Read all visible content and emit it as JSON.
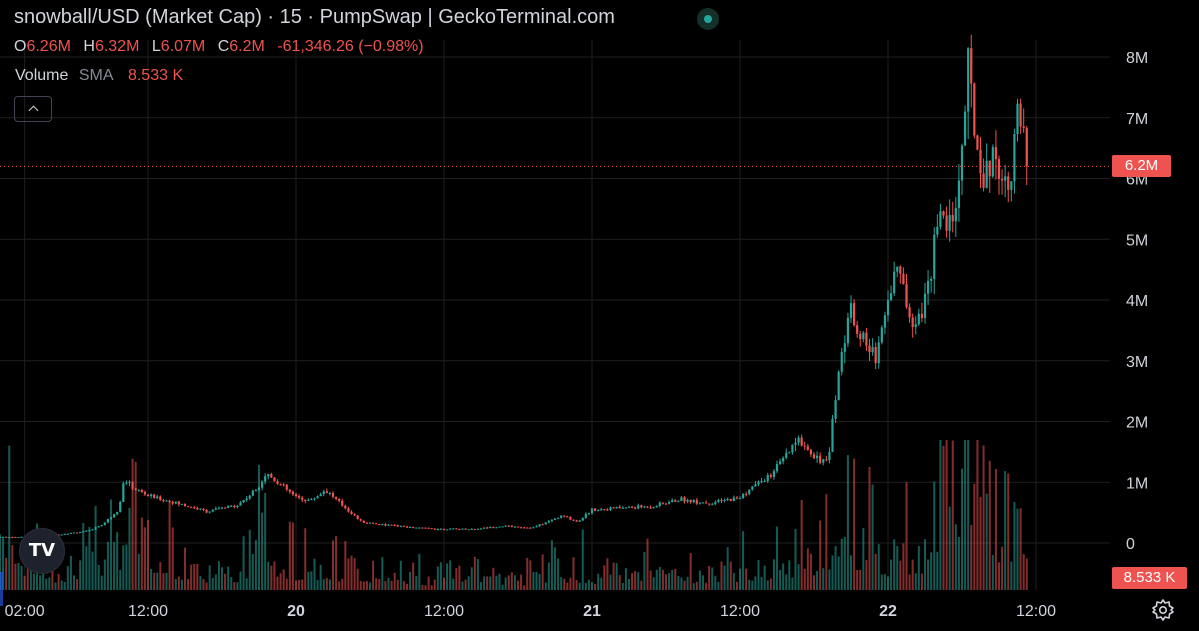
{
  "header": {
    "title": "snowball/USD (Market Cap) · 15 · PumpSwap | GeckoTerminal.com"
  },
  "ohlc": {
    "o_label": "O",
    "o": "6.26M",
    "h_label": "H",
    "h": "6.32M",
    "l_label": "L",
    "l": "6.07M",
    "c_label": "C",
    "c": "6.2M",
    "change": "-61,346.26 (−0.98%)"
  },
  "volume_legend": {
    "label": "Volume",
    "sma_label": "SMA",
    "value": "8.533 K"
  },
  "tags": {
    "last_price": "6.2M",
    "last_volume": "8.533 K"
  },
  "colors": {
    "up": "#26a69a",
    "down": "#ef5350",
    "grid": "#1f1f1f",
    "text": "#d1d4dc",
    "price_line": "#ef5350"
  },
  "icons": {
    "collapse": "chevron-up-icon",
    "logo": "tradingview-logo-icon",
    "settings": "gear-icon",
    "status": "live-status-dot-icon"
  },
  "chart_data": {
    "type": "candlestick",
    "interval": "15",
    "y_ticks": [
      "8M",
      "7M",
      "6M",
      "5M",
      "4M",
      "3M",
      "2M",
      "1M",
      "0"
    ],
    "y_tick_values": [
      8000000,
      7000000,
      6000000,
      5000000,
      4000000,
      3000000,
      2000000,
      1000000,
      0
    ],
    "ylim": [
      0,
      8000000
    ],
    "x_ticks": [
      "02:00",
      "12:00",
      "20",
      "12:00",
      "21",
      "12:00",
      "22",
      "12:00"
    ],
    "x_tick_days": [
      19.0833,
      19.5,
      20.0,
      20.5,
      21.0,
      21.5,
      22.0,
      22.5
    ],
    "xlim": [
      19.0,
      22.75
    ],
    "last_close": 6200000,
    "price_path": [
      [
        19.0,
        100000
      ],
      [
        19.1,
        100000
      ],
      [
        19.2,
        140000
      ],
      [
        19.3,
        200000
      ],
      [
        19.35,
        320000
      ],
      [
        19.4,
        550000
      ],
      [
        19.42,
        1050000
      ],
      [
        19.45,
        900000
      ],
      [
        19.5,
        780000
      ],
      [
        19.6,
        650000
      ],
      [
        19.7,
        520000
      ],
      [
        19.8,
        620000
      ],
      [
        19.86,
        850000
      ],
      [
        19.9,
        1150000
      ],
      [
        19.95,
        950000
      ],
      [
        20.0,
        750000
      ],
      [
        20.05,
        700000
      ],
      [
        20.1,
        880000
      ],
      [
        20.15,
        650000
      ],
      [
        20.22,
        350000
      ],
      [
        20.3,
        300000
      ],
      [
        20.4,
        250000
      ],
      [
        20.5,
        230000
      ],
      [
        20.6,
        230000
      ],
      [
        20.7,
        280000
      ],
      [
        20.8,
        250000
      ],
      [
        20.85,
        350000
      ],
      [
        20.9,
        450000
      ],
      [
        20.95,
        350000
      ],
      [
        21.0,
        550000
      ],
      [
        21.1,
        580000
      ],
      [
        21.2,
        600000
      ],
      [
        21.3,
        720000
      ],
      [
        21.4,
        650000
      ],
      [
        21.5,
        750000
      ],
      [
        21.55,
        950000
      ],
      [
        21.6,
        1100000
      ],
      [
        21.65,
        1400000
      ],
      [
        21.7,
        1700000
      ],
      [
        21.75,
        1450000
      ],
      [
        21.8,
        1300000
      ],
      [
        21.81,
        2000000
      ],
      [
        21.84,
        3000000
      ],
      [
        21.87,
        3900000
      ],
      [
        21.9,
        3500000
      ],
      [
        21.93,
        3200000
      ],
      [
        21.96,
        3100000
      ],
      [
        21.99,
        3800000
      ],
      [
        22.03,
        4600000
      ],
      [
        22.07,
        3800000
      ],
      [
        22.1,
        3700000
      ],
      [
        22.14,
        4200000
      ],
      [
        22.16,
        5400000
      ],
      [
        22.2,
        5200000
      ],
      [
        22.23,
        5600000
      ],
      [
        22.25,
        6500000
      ],
      [
        22.27,
        7800000
      ],
      [
        22.3,
        6500000
      ],
      [
        22.33,
        6000000
      ],
      [
        22.36,
        6500000
      ],
      [
        22.39,
        5900000
      ],
      [
        22.42,
        6200000
      ],
      [
        22.44,
        7100000
      ],
      [
        22.47,
        6200000
      ]
    ],
    "volume_path": [
      [
        19.0,
        12000
      ],
      [
        19.05,
        9000
      ],
      [
        19.15,
        4000
      ],
      [
        19.3,
        7000
      ],
      [
        19.45,
        14000
      ],
      [
        19.6,
        5000
      ],
      [
        19.8,
        5000
      ],
      [
        19.88,
        10000
      ],
      [
        20.0,
        6000
      ],
      [
        20.2,
        5000
      ],
      [
        20.4,
        3000
      ],
      [
        20.6,
        3000
      ],
      [
        20.8,
        3000
      ],
      [
        20.9,
        5000
      ],
      [
        21.0,
        4000
      ],
      [
        21.2,
        5000
      ],
      [
        21.4,
        4000
      ],
      [
        21.6,
        6000
      ],
      [
        21.7,
        9000
      ],
      [
        21.8,
        7000
      ],
      [
        21.84,
        15000
      ],
      [
        22.0,
        9000
      ],
      [
        22.1,
        8000
      ],
      [
        22.16,
        18000
      ],
      [
        22.27,
        25000
      ],
      [
        22.35,
        15000
      ],
      [
        22.44,
        12000
      ],
      [
        22.47,
        8533
      ]
    ],
    "volume_max": 30000
  }
}
